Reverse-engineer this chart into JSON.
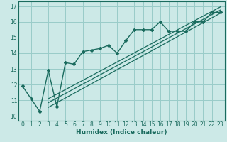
{
  "title": "",
  "xlabel": "Humidex (Indice chaleur)",
  "ylabel": "",
  "bg_color": "#cce9e7",
  "grid_color": "#99ccc9",
  "line_color": "#1a6b5e",
  "xlim": [
    -0.5,
    23.5
  ],
  "ylim": [
    9.7,
    17.3
  ],
  "xticks": [
    0,
    1,
    2,
    3,
    4,
    5,
    6,
    7,
    8,
    9,
    10,
    11,
    12,
    13,
    14,
    15,
    16,
    17,
    18,
    19,
    20,
    21,
    22,
    23
  ],
  "yticks": [
    10,
    11,
    12,
    13,
    14,
    15,
    16,
    17
  ],
  "main_x": [
    0,
    1,
    2,
    3,
    4,
    5,
    6,
    7,
    8,
    9,
    10,
    11,
    12,
    13,
    14,
    15,
    16,
    17,
    18,
    19,
    20,
    21,
    22,
    23
  ],
  "main_y": [
    11.9,
    11.1,
    10.3,
    12.9,
    10.6,
    13.4,
    13.3,
    14.1,
    14.2,
    14.3,
    14.5,
    14.0,
    14.8,
    15.5,
    15.5,
    15.5,
    16.0,
    15.4,
    15.4,
    15.4,
    16.0,
    16.0,
    16.6,
    16.6
  ],
  "trend_lines": [
    {
      "x0": 3,
      "y0": 10.55,
      "x1": 23,
      "y1": 16.55
    },
    {
      "x0": 3,
      "y0": 10.85,
      "x1": 23,
      "y1": 16.75
    },
    {
      "x0": 3,
      "y0": 11.1,
      "x1": 23,
      "y1": 16.95
    }
  ]
}
